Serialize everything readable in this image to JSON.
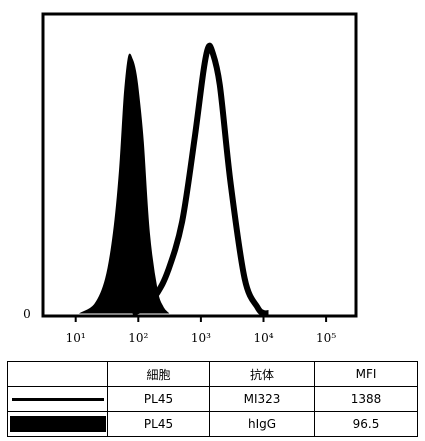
{
  "chart_data": {
    "type": "area",
    "xscale": "log",
    "xlim": [
      3,
      300000
    ],
    "ylim": [
      0,
      100
    ],
    "x_ticks": [
      {
        "value": 10,
        "label": "10¹"
      },
      {
        "value": 100,
        "label": "10²"
      },
      {
        "value": 1000,
        "label": "10³"
      },
      {
        "value": 10000,
        "label": "10⁴"
      },
      {
        "value": 100000,
        "label": "10⁵"
      }
    ],
    "y_ticks": [
      {
        "value": 0,
        "label": "0"
      }
    ],
    "series": [
      {
        "style": "filled",
        "color": "#000000",
        "x": [
          12,
          20,
          30,
          40,
          50,
          60,
          70,
          80,
          90,
          100,
          120,
          150,
          200,
          250,
          300
        ],
        "y": [
          0,
          3,
          12,
          28,
          50,
          77,
          90,
          89,
          85,
          78,
          60,
          28,
          8,
          2,
          0
        ]
      },
      {
        "style": "outline",
        "color": "#000000",
        "x": [
          80,
          130,
          200,
          300,
          500,
          800,
          1100,
          1300,
          1500,
          2000,
          3000,
          5000,
          8000,
          10000,
          12000
        ],
        "y": [
          0,
          2,
          7,
          15,
          32,
          62,
          85,
          93,
          92,
          80,
          45,
          12,
          2,
          0,
          0
        ]
      }
    ]
  },
  "table": {
    "headers": [
      "",
      "細胞",
      "抗体",
      "MFI"
    ],
    "rows": [
      {
        "swatch": "outline",
        "cells": [
          "PL45",
          "MI323",
          "1388"
        ]
      },
      {
        "swatch": "filled",
        "cells": [
          "PL45",
          "hIgG",
          "96.5"
        ]
      }
    ]
  }
}
